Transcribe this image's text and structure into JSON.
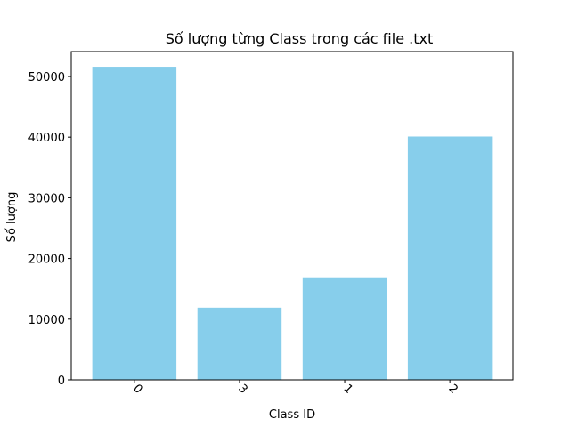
{
  "chart_data": {
    "type": "bar",
    "title": "Số lượng từng Class trong các file .txt",
    "xlabel": "Class ID",
    "ylabel": "Số lượng",
    "categories": [
      "0",
      "3",
      "1",
      "2"
    ],
    "values": [
      51600,
      11900,
      16900,
      40100
    ],
    "ylim": [
      0,
      54100
    ],
    "yticks": [
      0,
      10000,
      20000,
      30000,
      40000,
      50000
    ],
    "xtick_rotation": 45,
    "bar_color": "#87ceeb",
    "grid": false,
    "legend": "none"
  }
}
